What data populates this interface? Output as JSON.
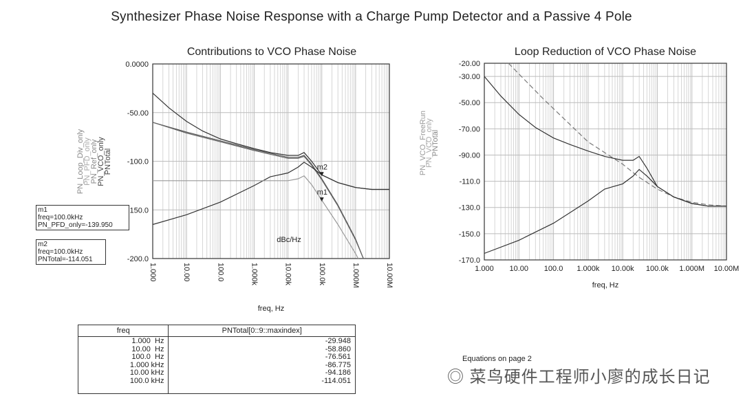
{
  "title": "Synthesizer Phase Noise Response with a Charge Pump Detector and a Passive 4 Pole",
  "chart_data": [
    {
      "type": "line",
      "title": "Contributions to VCO Phase Noise",
      "xlabel": "freq, Hz",
      "ylabel_unit": "dBc/Hz",
      "xscale": "log",
      "xlim": [
        1,
        10000000
      ],
      "ylim": [
        -200,
        0
      ],
      "xticks": [
        "1.000",
        "10.00",
        "100.0",
        "1.000k",
        "10.00k",
        "100.0k",
        "1.000M",
        "10.00M"
      ],
      "yticks": [
        "0.0000",
        "-50.00",
        "-100.0",
        "-150.0",
        "-200.0"
      ],
      "ytick_values": [
        0,
        -50,
        -100,
        -150,
        -200
      ],
      "legend": [
        "PN_Loop_Div_only",
        "PN_PFD_only",
        "PN_Ref_only",
        "PN_VCO_only",
        "PNTotal"
      ],
      "series": [
        {
          "name": "PNTotal",
          "color": "#333",
          "x": [
            1,
            3,
            10,
            30,
            100,
            300,
            1000,
            3000,
            10000,
            20000,
            30000,
            50000,
            100000,
            300000,
            1000000,
            3000000,
            10000000
          ],
          "y": [
            -30,
            -45,
            -59,
            -69,
            -77,
            -82,
            -87,
            -91,
            -94,
            -94,
            -91,
            -100,
            -114,
            -122,
            -127,
            -129,
            -129
          ]
        },
        {
          "name": "PN_Ref_only",
          "color": "#555",
          "x": [
            1,
            10,
            100,
            1000,
            10000,
            20000,
            30000,
            50000,
            100000,
            300000,
            1000000,
            1700000
          ],
          "y": [
            -60,
            -70,
            -79,
            -88,
            -96,
            -96,
            -94,
            -103,
            -118,
            -145,
            -180,
            -200
          ]
        },
        {
          "name": "PN_Loop_Div_only",
          "color": "#666",
          "x": [
            1,
            10,
            100,
            1000,
            10000,
            20000,
            30000,
            50000,
            100000,
            300000,
            1000000,
            1700000
          ],
          "y": [
            -60,
            -71,
            -80,
            -89,
            -97,
            -97,
            -95,
            -104,
            -119,
            -146,
            -181,
            -200
          ]
        },
        {
          "name": "PN_VCO_only",
          "color": "#333",
          "x": [
            1,
            10,
            100,
            1000,
            3000,
            10000,
            20000,
            30000,
            50000,
            100000,
            300000,
            1000000,
            3000000,
            10000000
          ],
          "y": [
            -165,
            -155,
            -142,
            -125,
            -116,
            -112,
            -106,
            -101,
            -106,
            -114,
            -122,
            -127,
            -129,
            -129
          ]
        },
        {
          "name": "PN_PFD_only",
          "color": "#999",
          "x": [
            1,
            10,
            100,
            1000,
            10000,
            20000,
            30000,
            50000,
            100000,
            300000,
            1000000,
            1200000
          ],
          "y": [
            -120,
            -120,
            -120,
            -120,
            -120,
            -118,
            -115,
            -124,
            -140,
            -165,
            -195,
            -200
          ]
        }
      ],
      "markers": [
        {
          "name": "m1",
          "freq": "100.0kHz",
          "trace": "PN_PFD_only",
          "value": "-139.950",
          "x": 100000,
          "y": -140
        },
        {
          "name": "m2",
          "freq": "100.0kHz",
          "trace": "PNTotal",
          "value": "-114.051",
          "x": 100000,
          "y": -114
        }
      ]
    },
    {
      "type": "line",
      "title": "Loop Reduction of VCO Phase Noise",
      "xlabel": "freq, Hz",
      "xscale": "log",
      "xlim": [
        1,
        10000000
      ],
      "ylim": [
        -170,
        -20
      ],
      "xticks": [
        "1.000",
        "10.00",
        "100.0",
        "1.000k",
        "10.00k",
        "100.0k",
        "1.000M",
        "10.00M"
      ],
      "yticks": [
        "-20.00",
        "-30.00",
        "-50.00",
        "-70.00",
        "-90.00",
        "-110.0",
        "-130.0",
        "-150.0",
        "-170.0"
      ],
      "ytick_values": [
        -20,
        -30,
        -50,
        -70,
        -90,
        -110,
        -130,
        -150,
        -170
      ],
      "legend": [
        "PN_VCO_FreeRun",
        "PN_VCO_only",
        "PNTotal"
      ],
      "series": [
        {
          "name": "PN_VCO_FreeRun",
          "color": "#777",
          "dashed": true,
          "x": [
            5,
            50,
            1000,
            10000,
            30000,
            100000,
            300000,
            1000000,
            3000000,
            10000000
          ],
          "y": [
            -20,
            -47,
            -80,
            -97,
            -107,
            -116,
            -122,
            -126,
            -128,
            -129
          ]
        },
        {
          "name": "PNTotal",
          "color": "#333",
          "x": [
            1,
            3,
            10,
            30,
            100,
            300,
            1000,
            3000,
            10000,
            20000,
            30000,
            50000,
            100000,
            300000,
            1000000,
            3000000,
            10000000
          ],
          "y": [
            -30,
            -45,
            -59,
            -69,
            -77,
            -82,
            -87,
            -91,
            -94,
            -94,
            -91,
            -100,
            -114,
            -122,
            -127,
            -129,
            -129
          ]
        },
        {
          "name": "PN_VCO_only",
          "color": "#333",
          "x": [
            1,
            10,
            100,
            1000,
            3000,
            10000,
            20000,
            30000,
            50000,
            100000,
            300000,
            1000000,
            3000000,
            10000000
          ],
          "y": [
            -165,
            -155,
            -142,
            -125,
            -116,
            -112,
            -106,
            -101,
            -106,
            -114,
            -122,
            -127,
            -129,
            -129
          ]
        }
      ]
    }
  ],
  "table": {
    "headers": [
      "freq",
      "PNTotal[0::9::maxindex]"
    ],
    "freq": [
      "1.000  Hz",
      "10.00  Hz",
      "100.0  Hz",
      "1.000 kHz",
      "10.00 kHz",
      "100.0 kHz"
    ],
    "values": [
      "-29.948",
      "-58.860",
      "-76.561",
      "-86.775",
      "-94.186",
      "-114.051"
    ]
  },
  "markers": {
    "m1": {
      "name": "m1",
      "line1": "freq=100.0kHz",
      "line2": "PN_PFD_only=-139.950"
    },
    "m2": {
      "name": "m2",
      "line1": "freq=100.0kHz",
      "line2": "PNTotal=-114.051"
    }
  },
  "equations_note": "Equations on page 2",
  "watermark": "菜鸟硬件工程师小廖的成长日记"
}
